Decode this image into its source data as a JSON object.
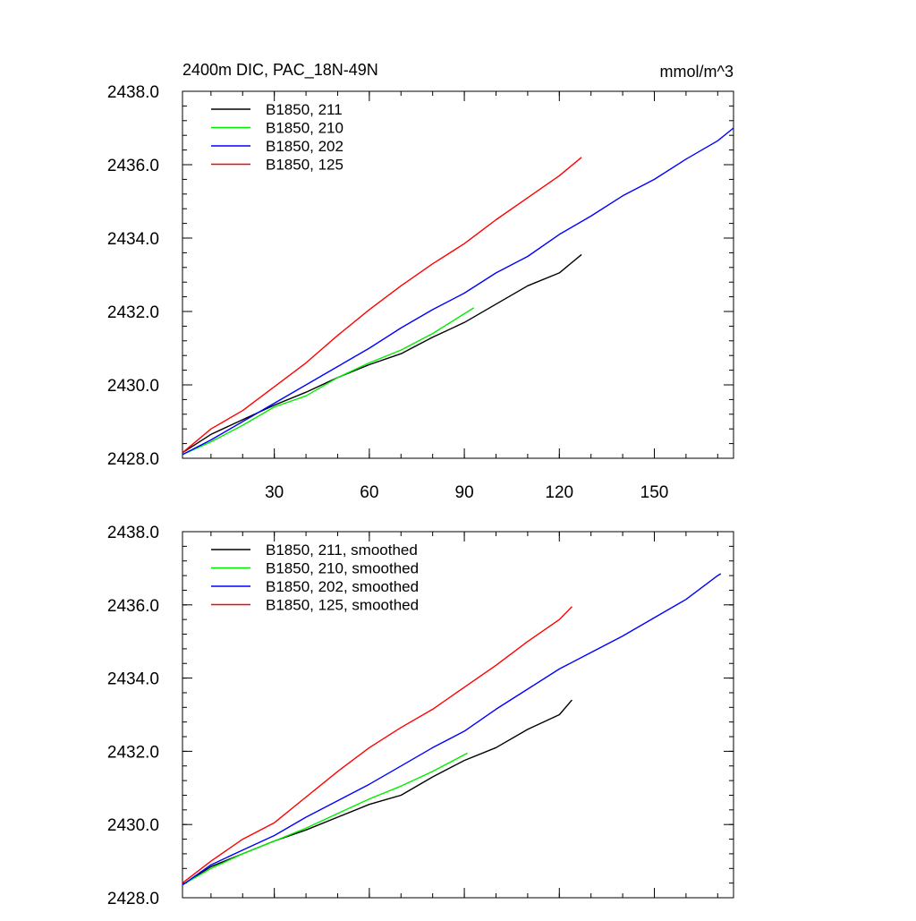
{
  "figure": {
    "title": "2400m DIC, PAC_18N-49N",
    "units": "mmol/m^3"
  },
  "chart_data": [
    {
      "type": "line",
      "panel": "top",
      "title": "2400m DIC, PAC_18N-49N",
      "units_label": "mmol/m^3",
      "xlim": [
        1,
        175
      ],
      "ylim": [
        2428.0,
        2438.0
      ],
      "x_ticks": [
        30,
        60,
        90,
        120,
        150
      ],
      "x_tick_labels": [
        "30",
        "60",
        "90",
        "120",
        "150"
      ],
      "y_ticks": [
        2428.0,
        2430.0,
        2432.0,
        2434.0,
        2436.0,
        2438.0
      ],
      "y_tick_labels": [
        "2428.0",
        "2430.0",
        "2432.0",
        "2434.0",
        "2436.0",
        "2438.0"
      ],
      "legend_position": "top-left",
      "series": [
        {
          "name": "B1850, 211",
          "color": "#000000",
          "x": [
            1,
            10,
            20,
            30,
            40,
            50,
            60,
            70,
            80,
            90,
            100,
            110,
            120,
            127
          ],
          "y": [
            2428.15,
            2428.65,
            2429.05,
            2429.45,
            2429.8,
            2430.2,
            2430.55,
            2430.85,
            2431.3,
            2431.7,
            2432.2,
            2432.7,
            2433.05,
            2433.55
          ]
        },
        {
          "name": "B1850, 210",
          "color": "#00ee00",
          "x": [
            1,
            10,
            20,
            30,
            40,
            50,
            60,
            70,
            80,
            93
          ],
          "y": [
            2428.1,
            2428.45,
            2428.9,
            2429.4,
            2429.7,
            2430.2,
            2430.6,
            2430.95,
            2431.4,
            2432.1
          ]
        },
        {
          "name": "B1850, 202",
          "color": "#0000ff",
          "x": [
            1,
            10,
            20,
            30,
            40,
            50,
            60,
            70,
            80,
            90,
            100,
            110,
            120,
            130,
            140,
            150,
            160,
            170,
            175
          ],
          "y": [
            2428.1,
            2428.5,
            2429.0,
            2429.5,
            2430.0,
            2430.5,
            2431.0,
            2431.55,
            2432.05,
            2432.5,
            2433.05,
            2433.5,
            2434.1,
            2434.6,
            2435.15,
            2435.6,
            2436.15,
            2436.65,
            2437.0
          ]
        },
        {
          "name": "B1850, 125",
          "color": "#ff0000",
          "x": [
            1,
            10,
            20,
            30,
            40,
            50,
            60,
            70,
            80,
            90,
            100,
            110,
            120,
            127
          ],
          "y": [
            2428.15,
            2428.8,
            2429.3,
            2429.95,
            2430.6,
            2431.35,
            2432.05,
            2432.7,
            2433.3,
            2433.85,
            2434.5,
            2435.1,
            2435.7,
            2436.2
          ]
        }
      ]
    },
    {
      "type": "line",
      "panel": "bottom",
      "title": "",
      "xlim": [
        1,
        175
      ],
      "ylim": [
        2428.0,
        2438.0
      ],
      "x_ticks": [
        30,
        60,
        90,
        120,
        150
      ],
      "x_tick_labels": [],
      "y_ticks": [
        2428.0,
        2430.0,
        2432.0,
        2434.0,
        2436.0,
        2438.0
      ],
      "y_tick_labels": [
        "2428.0",
        "2430.0",
        "2432.0",
        "2434.0",
        "2436.0",
        "2438.0"
      ],
      "legend_position": "top-left",
      "series": [
        {
          "name": "B1850, 211, smoothed",
          "color": "#000000",
          "x": [
            1,
            10,
            20,
            30,
            40,
            50,
            60,
            70,
            80,
            90,
            100,
            110,
            120,
            124
          ],
          "y": [
            2428.35,
            2428.85,
            2429.2,
            2429.55,
            2429.85,
            2430.2,
            2430.55,
            2430.8,
            2431.3,
            2431.75,
            2432.1,
            2432.6,
            2433.0,
            2433.4
          ]
        },
        {
          "name": "B1850, 210, smoothed",
          "color": "#00ee00",
          "x": [
            1,
            10,
            20,
            30,
            40,
            50,
            60,
            70,
            80,
            91
          ],
          "y": [
            2428.35,
            2428.8,
            2429.2,
            2429.55,
            2429.9,
            2430.3,
            2430.7,
            2431.05,
            2431.45,
            2431.95
          ]
        },
        {
          "name": "B1850, 202, smoothed",
          "color": "#0000ff",
          "x": [
            1,
            10,
            20,
            30,
            40,
            50,
            60,
            70,
            80,
            90,
            100,
            110,
            120,
            130,
            140,
            150,
            160,
            170,
            171
          ],
          "y": [
            2428.35,
            2428.9,
            2429.3,
            2429.7,
            2430.2,
            2430.65,
            2431.1,
            2431.6,
            2432.1,
            2432.55,
            2433.15,
            2433.7,
            2434.25,
            2434.7,
            2435.15,
            2435.65,
            2436.15,
            2436.8,
            2436.85
          ]
        },
        {
          "name": "B1850, 125, smoothed",
          "color": "#ff0000",
          "x": [
            1,
            10,
            20,
            30,
            40,
            50,
            60,
            70,
            80,
            90,
            100,
            110,
            120,
            124
          ],
          "y": [
            2428.4,
            2429.0,
            2429.6,
            2430.05,
            2430.75,
            2431.45,
            2432.1,
            2432.65,
            2433.15,
            2433.75,
            2434.35,
            2435.0,
            2435.6,
            2435.95
          ]
        }
      ]
    }
  ]
}
